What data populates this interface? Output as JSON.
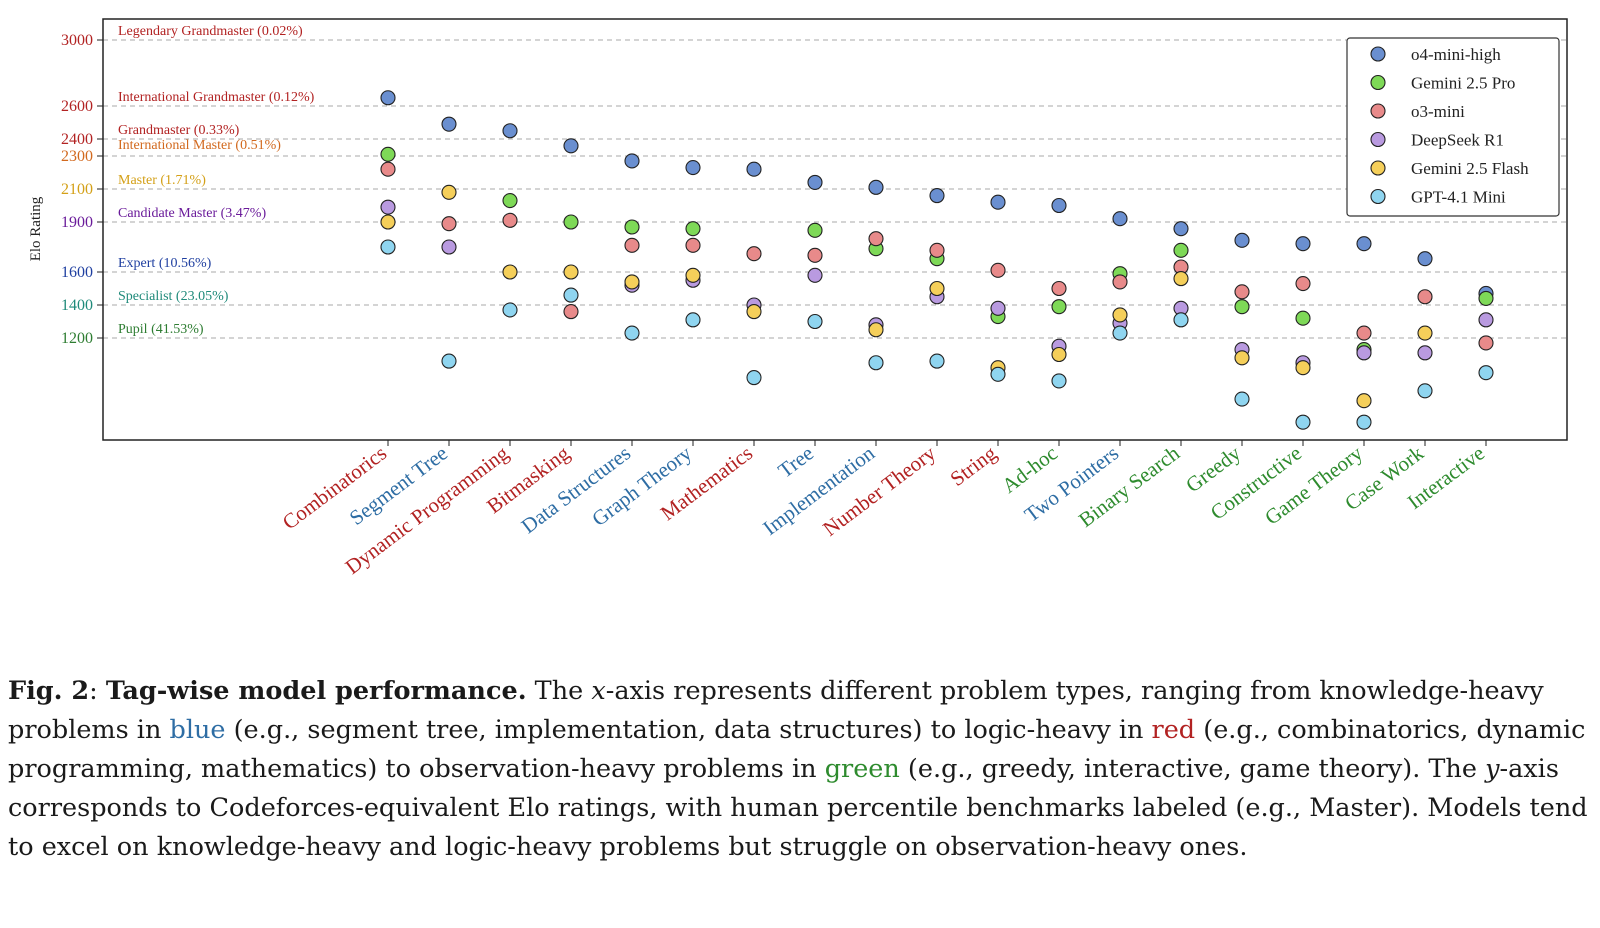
{
  "chart_data": {
    "type": "scatter",
    "ylabel": "Elo Rating",
    "y_ticks": [
      1200,
      1400,
      1600,
      1900,
      2100,
      2300,
      2400,
      2600,
      3000
    ],
    "ylim": [
      600,
      3130
    ],
    "grid": "horizontal dashed lines at band thresholds",
    "legend_position": "top-right",
    "bands": [
      {
        "label": "Legendary Grandmaster (0.02%)",
        "value": 3000,
        "color": "#b22222"
      },
      {
        "label": "International Grandmaster (0.12%)",
        "value": 2600,
        "color": "#b22222"
      },
      {
        "label": "Grandmaster (0.33%)",
        "value": 2400,
        "color": "#b22222"
      },
      {
        "label": "International Master (0.51%)",
        "value": 2300,
        "color": "#d2691e"
      },
      {
        "label": "Master (1.71%)",
        "value": 2100,
        "color": "#d4a017"
      },
      {
        "label": "Candidate Master (3.47%)",
        "value": 1900,
        "color": "#6a1b9a"
      },
      {
        "label": "Expert (10.56%)",
        "value": 1600,
        "color": "#1f3fa0"
      },
      {
        "label": "Specialist (23.05%)",
        "value": 1400,
        "color": "#1f8a7a"
      },
      {
        "label": "Pupil (41.53%)",
        "value": 1200,
        "color": "#2e7d32"
      }
    ],
    "categories": [
      {
        "name": "Combinatorics",
        "group": "red"
      },
      {
        "name": "Segment Tree",
        "group": "blue"
      },
      {
        "name": "Dynamic Programming",
        "group": "red"
      },
      {
        "name": "Bitmasking",
        "group": "red"
      },
      {
        "name": "Data Structures",
        "group": "blue"
      },
      {
        "name": "Graph Theory",
        "group": "blue"
      },
      {
        "name": "Mathematics",
        "group": "red"
      },
      {
        "name": "Tree",
        "group": "blue"
      },
      {
        "name": "Implementation",
        "group": "blue"
      },
      {
        "name": "Number Theory",
        "group": "red"
      },
      {
        "name": "String",
        "group": "red"
      },
      {
        "name": "Ad-hoc",
        "group": "green"
      },
      {
        "name": "Two Pointers",
        "group": "blue"
      },
      {
        "name": "Binary Search",
        "group": "green"
      },
      {
        "name": "Greedy",
        "group": "green"
      },
      {
        "name": "Constructive",
        "group": "green"
      },
      {
        "name": "Game Theory",
        "group": "green"
      },
      {
        "name": "Case Work",
        "group": "green"
      },
      {
        "name": "Interactive",
        "group": "green"
      }
    ],
    "group_colors": {
      "red": "#b22222",
      "blue": "#2e6da4",
      "green": "#2e8b2e"
    },
    "series": [
      {
        "name": "o4-mini-high",
        "color": "#6a8fd0",
        "values": [
          2650,
          2490,
          2450,
          2360,
          2270,
          2230,
          2220,
          2140,
          2110,
          2060,
          2020,
          2000,
          1920,
          1860,
          1790,
          1770,
          1770,
          1680,
          1470
        ]
      },
      {
        "name": "Gemini 2.5 Pro",
        "color": "#7ed957",
        "values": [
          2310,
          null,
          2030,
          1900,
          1870,
          1860,
          null,
          1850,
          1740,
          1680,
          1330,
          1390,
          1590,
          1730,
          1390,
          1320,
          1130,
          null,
          1440
        ]
      },
      {
        "name": "o3-mini",
        "color": "#e88a8a",
        "values": [
          2220,
          1890,
          1910,
          1360,
          1760,
          1760,
          1710,
          1700,
          1800,
          1730,
          1610,
          1500,
          1540,
          1630,
          1480,
          1530,
          1230,
          1450,
          1170
        ]
      },
      {
        "name": "DeepSeek R1",
        "color": "#b99ae0",
        "values": [
          1990,
          1750,
          null,
          null,
          1520,
          1550,
          1400,
          1580,
          1280,
          1450,
          1380,
          1150,
          1290,
          1380,
          1130,
          1050,
          1110,
          1110,
          1310
        ]
      },
      {
        "name": "Gemini 2.5 Flash",
        "color": "#f5cf5a",
        "values": [
          1900,
          2080,
          1600,
          1600,
          1540,
          1580,
          1360,
          null,
          1250,
          1500,
          1020,
          1100,
          1340,
          1560,
          1080,
          1020,
          820,
          1230,
          null
        ]
      },
      {
        "name": "GPT-4.1 Mini",
        "color": "#8fd5f0",
        "values": [
          1750,
          1060,
          1370,
          1460,
          1230,
          1310,
          960,
          1300,
          1050,
          1060,
          980,
          940,
          1230,
          1310,
          830,
          690,
          690,
          880,
          990
        ]
      }
    ]
  },
  "caption": {
    "fig_label": "Fig. 2",
    "colon": ": ",
    "bold_title": "Tag-wise model performance.",
    "t1": " The ",
    "x_var": "x",
    "t2": "-axis represents different problem types, ranging from knowledge-heavy problems in ",
    "blue_word": "blue",
    "t3": " (e.g., segment tree, implementation, data structures) to logic-heavy in ",
    "red_word": "red",
    "t4": " (e.g., combinatorics, dynamic programming, mathematics) to observation-heavy problems in ",
    "green_word": "green",
    "t5": " (e.g., greedy, interactive, game theory). The ",
    "y_var": "y",
    "t6": "-axis corresponds to Codeforces-equivalent Elo ratings, with human percentile benchmarks labeled (e.g., Master). Models tend to excel on knowledge-heavy and logic-heavy problems but struggle on observation-heavy ones."
  }
}
